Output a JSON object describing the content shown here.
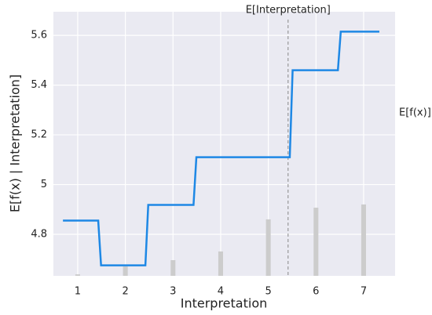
{
  "chart_data": {
    "type": "line",
    "x_label": "Interpretation",
    "y_label": "E[f(x) | Interpretation]",
    "series": [
      {
        "color": "#1e88e5",
        "x": [
          0.69,
          1.43,
          1.49,
          2.42,
          2.48,
          3.43,
          3.49,
          5.45,
          5.51,
          6.46,
          6.52,
          7.33
        ],
        "values": [
          4.855,
          4.855,
          4.675,
          4.675,
          4.918,
          4.918,
          5.11,
          5.11,
          5.46,
          5.46,
          5.615,
          5.615
        ]
      }
    ],
    "histogram": {
      "color": "#cccccc",
      "x": [
        1,
        2,
        3,
        4,
        5,
        6,
        7
      ],
      "values": [
        4.639,
        4.671,
        4.696,
        4.731,
        4.86,
        4.907,
        4.92
      ]
    },
    "expected_x": 5.415,
    "expected_x_label": "E[Interpretation]",
    "expected_value": 5.288,
    "expected_value_label": "E[f(x)]",
    "xlim": [
      0.49,
      7.66
    ],
    "xticks": [
      1,
      2,
      3,
      4,
      5,
      6,
      7
    ],
    "ylim": [
      4.633,
      5.695
    ],
    "yticks": [
      4.8,
      5.0,
      5.2,
      5.4,
      5.6
    ],
    "grid": true
  }
}
